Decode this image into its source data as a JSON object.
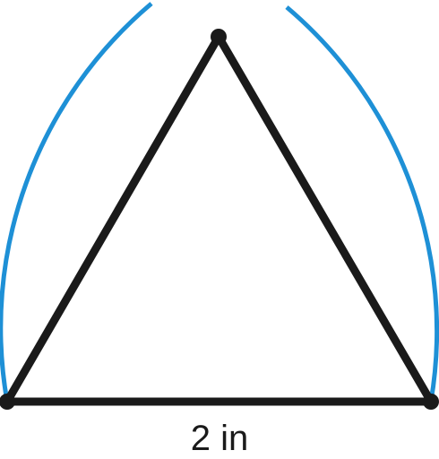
{
  "diagram": {
    "base_label": "2 in",
    "colors": {
      "arc": "#1e90d6",
      "triangle": "#1a1a1a",
      "vertex": "#1a1a1a",
      "label": "#1a1a1a"
    }
  }
}
